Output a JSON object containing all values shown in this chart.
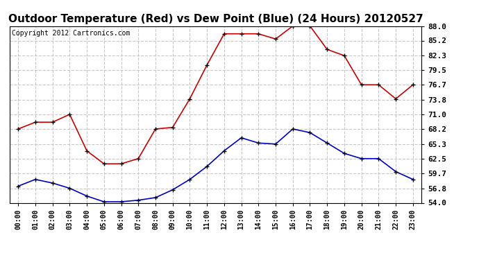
{
  "title": "Outdoor Temperature (Red) vs Dew Point (Blue) (24 Hours) 20120527",
  "copyright": "Copyright 2012 Cartronics.com",
  "x_labels": [
    "00:00",
    "01:00",
    "02:00",
    "03:00",
    "04:00",
    "05:00",
    "06:00",
    "07:00",
    "08:00",
    "09:00",
    "10:00",
    "11:00",
    "12:00",
    "13:00",
    "14:00",
    "15:00",
    "16:00",
    "17:00",
    "18:00",
    "19:00",
    "20:00",
    "21:00",
    "22:00",
    "23:00"
  ],
  "temp_red": [
    68.2,
    69.5,
    69.5,
    71.0,
    64.0,
    61.5,
    61.5,
    62.5,
    68.2,
    68.5,
    74.0,
    80.5,
    86.5,
    86.5,
    86.5,
    85.5,
    88.0,
    88.0,
    83.5,
    82.3,
    76.7,
    76.7,
    74.0,
    76.7
  ],
  "dew_blue": [
    57.2,
    58.5,
    57.8,
    56.8,
    55.3,
    54.2,
    54.2,
    54.5,
    55.0,
    56.5,
    58.5,
    61.0,
    64.0,
    66.5,
    65.5,
    65.3,
    68.2,
    67.5,
    65.5,
    63.5,
    62.5,
    62.5,
    60.0,
    58.5
  ],
  "y_ticks": [
    54.0,
    56.8,
    59.7,
    62.5,
    65.3,
    68.2,
    71.0,
    73.8,
    76.7,
    79.5,
    82.3,
    85.2,
    88.0
  ],
  "ylim": [
    54.0,
    88.0
  ],
  "bg_color": "#ffffff",
  "plot_bg": "#ffffff",
  "grid_color": "#c8c8c8",
  "red_color": "#cc0000",
  "blue_color": "#0000cc",
  "title_fontsize": 11,
  "copyright_fontsize": 7
}
